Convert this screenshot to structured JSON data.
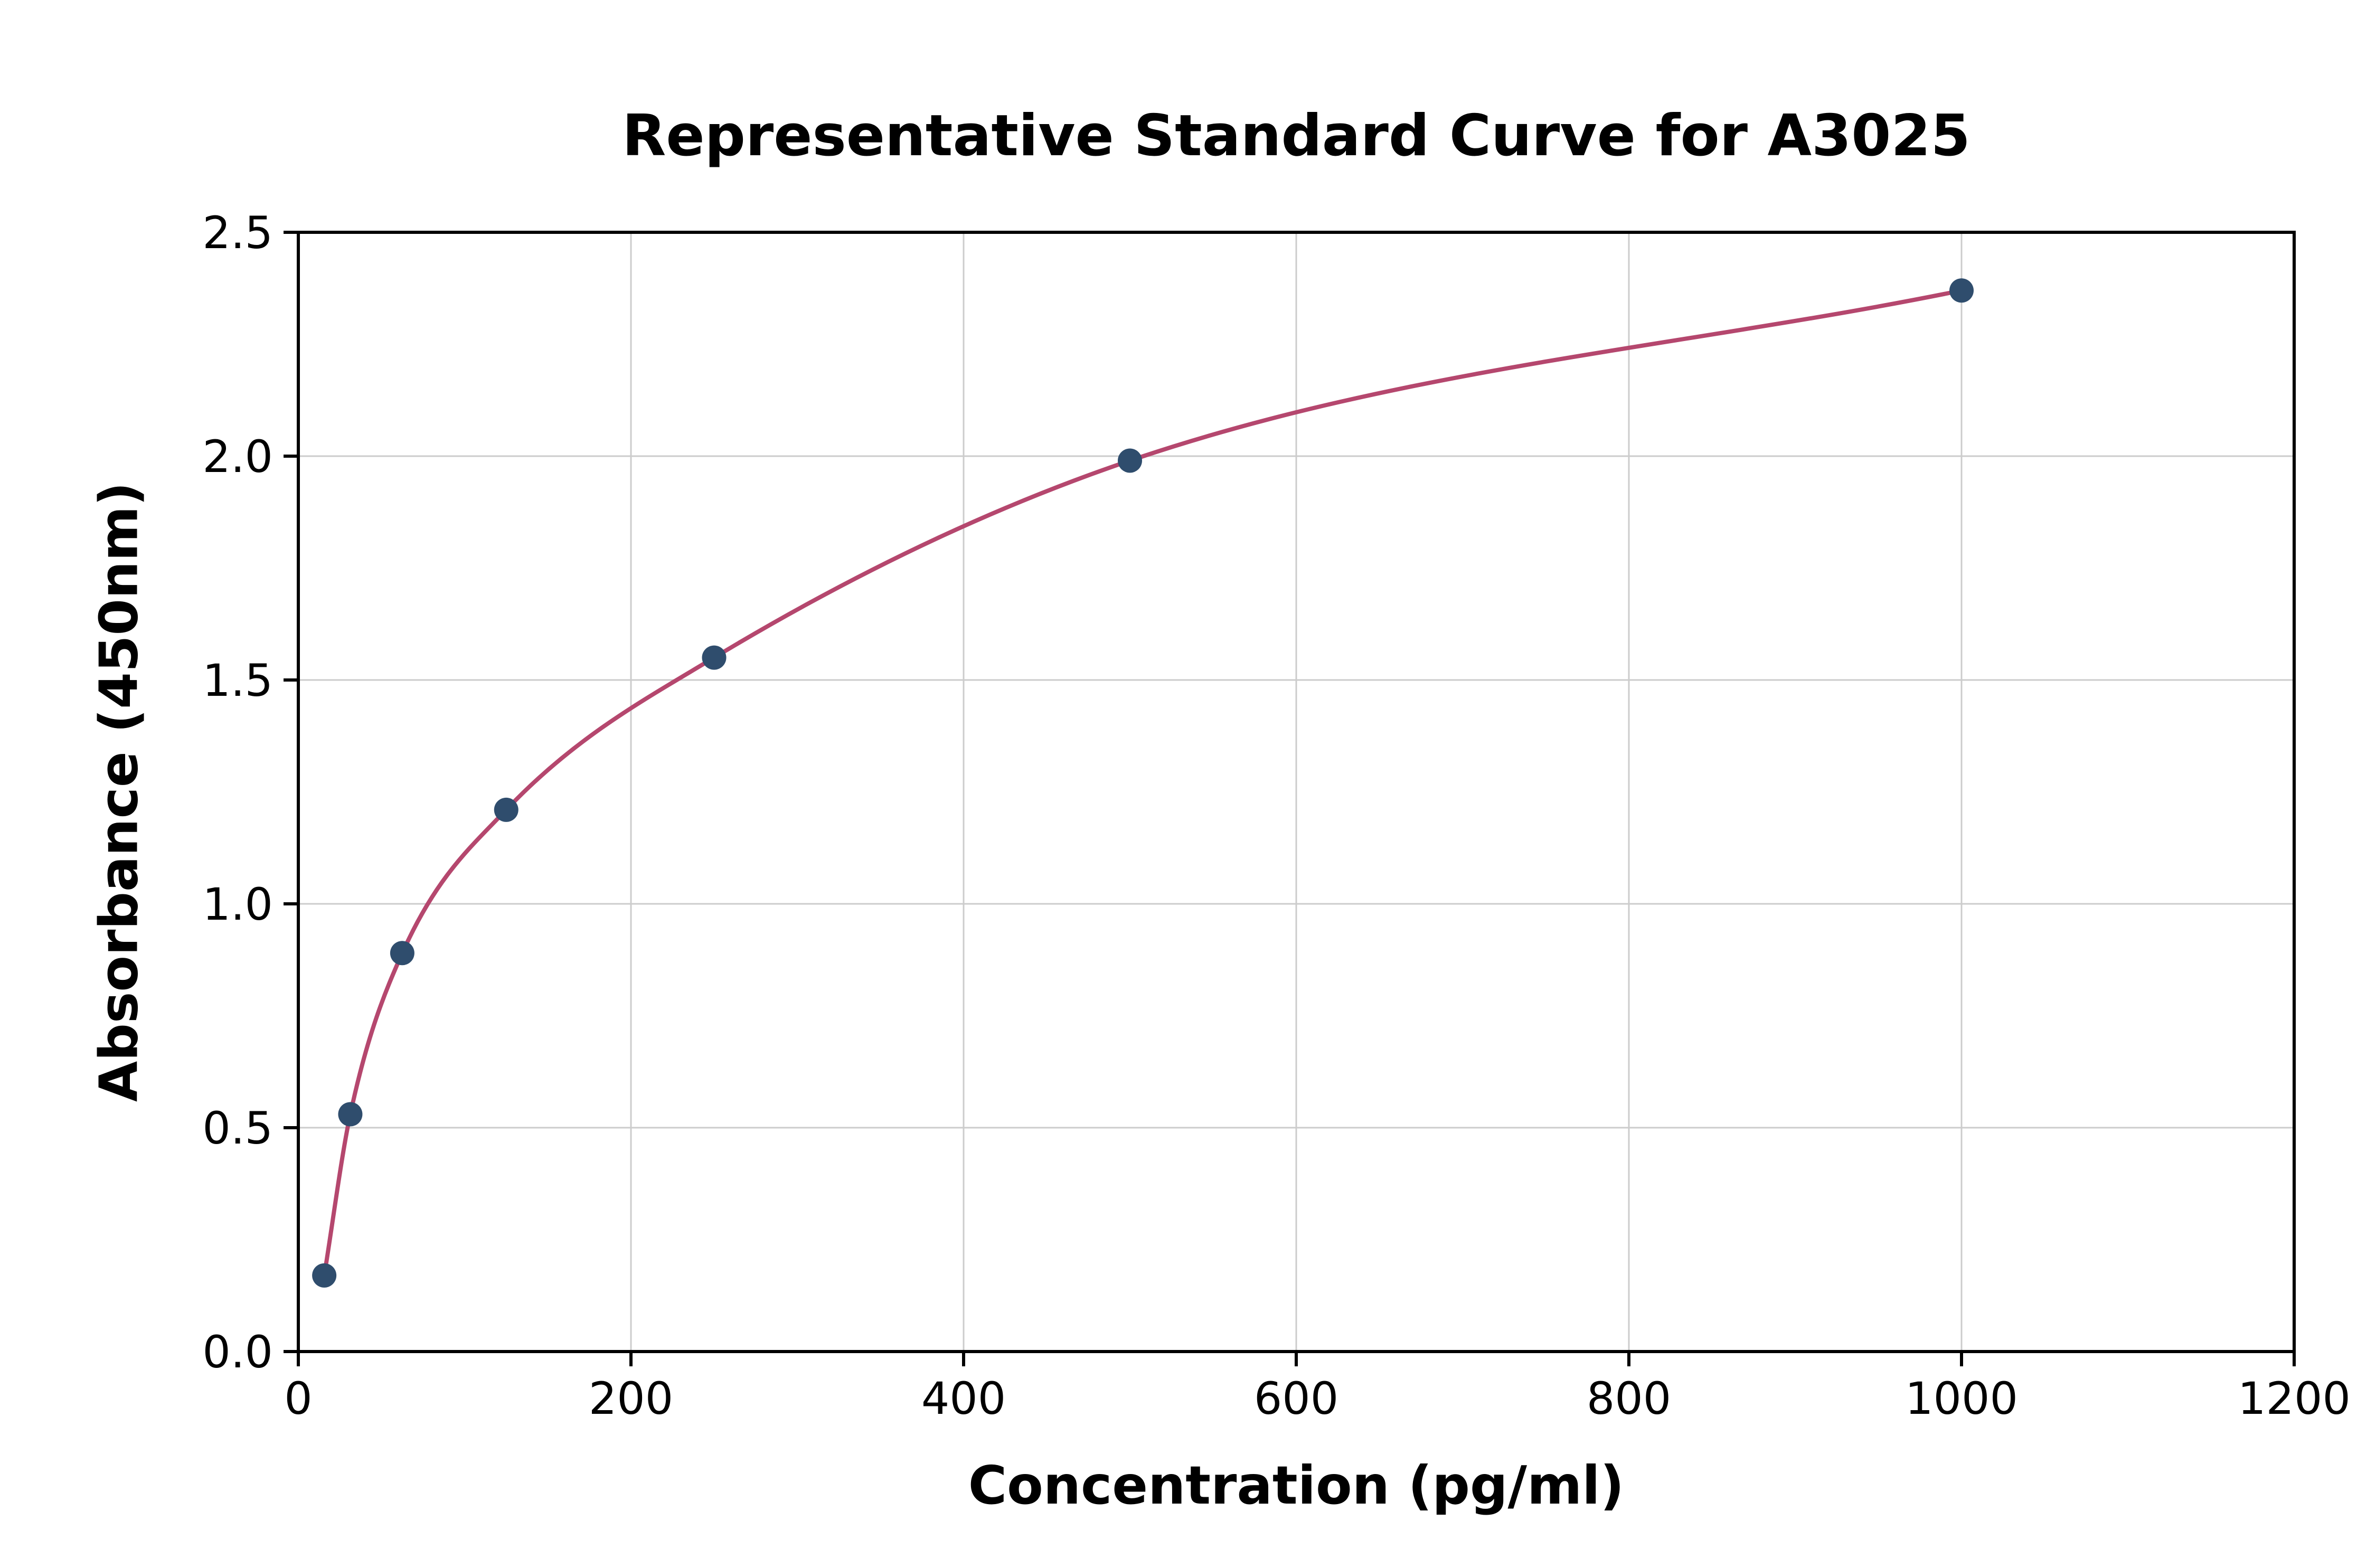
{
  "chart_data": {
    "type": "scatter",
    "title": "Representative Standard Curve for A3025",
    "xlabel": "Concentration (pg/ml)",
    "ylabel": "Absorbance (450nm)",
    "xlim": [
      0,
      1200
    ],
    "ylim": [
      0,
      2.5
    ],
    "x_ticks": [
      0,
      200,
      400,
      600,
      800,
      1000,
      1200
    ],
    "x_tick_labels": [
      "0",
      "200",
      "400",
      "600",
      "800",
      "1000",
      "1200"
    ],
    "y_ticks": [
      0.0,
      0.5,
      1.0,
      1.5,
      2.0,
      2.5
    ],
    "y_tick_labels": [
      "0.0",
      "0.5",
      "1.0",
      "1.5",
      "2.0",
      "2.5"
    ],
    "grid": true,
    "legend": "none",
    "points": {
      "x": [
        15.6,
        31.25,
        62.5,
        125,
        250,
        500,
        1000
      ],
      "y": [
        0.17,
        0.53,
        0.89,
        1.21,
        1.55,
        1.99,
        2.37
      ]
    },
    "fit_curve": "smooth saturating curve through points",
    "colors": {
      "point_color": "#2f4d6d",
      "line_color": "#b5476e",
      "grid_color": "#cccccc",
      "frame_color": "#000000",
      "tick_label_color": "#000000"
    }
  }
}
